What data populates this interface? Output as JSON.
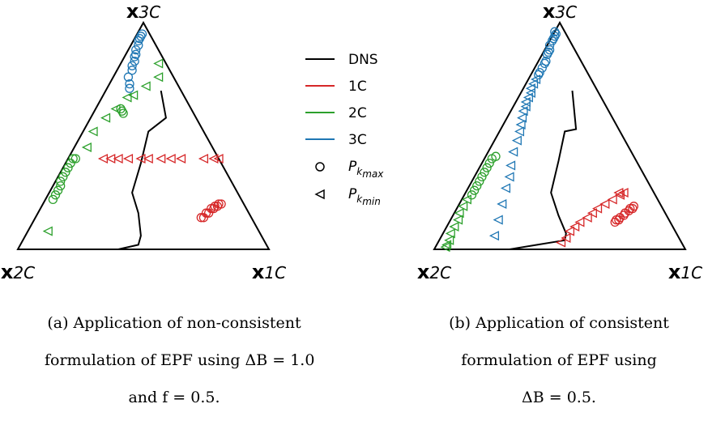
{
  "colors": {
    "dns": "#000000",
    "c1": "#d62728",
    "c2": "#2ca02c",
    "c3": "#1f77b4"
  },
  "vertices": {
    "top": {
      "main": "x",
      "sub": "3C"
    },
    "left": {
      "main": "x",
      "sub": "2C"
    },
    "right": {
      "main": "x",
      "sub": "1C"
    }
  },
  "legend": [
    {
      "key": "dns",
      "label": "DNS",
      "symbol": "line"
    },
    {
      "key": "c1",
      "label": "1C",
      "symbol": "line"
    },
    {
      "key": "c2",
      "label": "2C",
      "symbol": "line"
    },
    {
      "key": "c3",
      "label": "3C",
      "symbol": "line"
    },
    {
      "key": "pmax",
      "label": "P",
      "sub": "k",
      "subsub": "max",
      "symbol": "circle"
    },
    {
      "key": "pmin",
      "label": "P",
      "sub": "k",
      "subsub": "min",
      "symbol": "triangle-left"
    }
  ],
  "captions": {
    "a": [
      "(a) Application of non-consistent",
      "formulation of EPF using ΔB = 1.0",
      "and f = 0.5."
    ],
    "b": [
      "(b) Application of consistent",
      "formulation of EPF using",
      "ΔB = 0.5."
    ]
  },
  "chart_data": [
    {
      "type": "scatter",
      "panel": "a",
      "coordinates": "barycentric (x1C, x2C, x3C)",
      "dns_line": [
        [
          0.22,
          0.08,
          0.7
        ],
        [
          0.3,
          0.12,
          0.58
        ],
        [
          0.26,
          0.22,
          0.52
        ],
        [
          0.3,
          0.32,
          0.38
        ],
        [
          0.33,
          0.42,
          0.25
        ],
        [
          0.4,
          0.44,
          0.16
        ],
        [
          0.46,
          0.48,
          0.06
        ],
        [
          0.47,
          0.51,
          0.02
        ],
        [
          0.4,
          0.6,
          0.0
        ]
      ],
      "series": [
        {
          "name": "1C",
          "marker": "circle",
          "points": [
            [
              0.71,
              0.09,
              0.2
            ],
            [
              0.7,
              0.1,
              0.2
            ],
            [
              0.7,
              0.11,
              0.19
            ],
            [
              0.69,
              0.12,
              0.19
            ],
            [
              0.69,
              0.13,
              0.18
            ],
            [
              0.68,
              0.14,
              0.18
            ],
            [
              0.68,
              0.16,
              0.16
            ],
            [
              0.67,
              0.17,
              0.16
            ],
            [
              0.67,
              0.19,
              0.14
            ],
            [
              0.66,
              0.2,
              0.14
            ]
          ]
        },
        {
          "name": "1C",
          "marker": "triangle-left",
          "points": [
            [
              0.6,
              0.0,
              0.4
            ],
            [
              0.58,
              0.02,
              0.4
            ],
            [
              0.54,
              0.06,
              0.4
            ],
            [
              0.45,
              0.15,
              0.4
            ],
            [
              0.41,
              0.19,
              0.4
            ],
            [
              0.37,
              0.23,
              0.4
            ],
            [
              0.32,
              0.28,
              0.4
            ],
            [
              0.29,
              0.31,
              0.4
            ],
            [
              0.24,
              0.36,
              0.4
            ],
            [
              0.2,
              0.4,
              0.4
            ],
            [
              0.17,
              0.43,
              0.4
            ],
            [
              0.14,
              0.46,
              0.4
            ]
          ]
        },
        {
          "name": "2C",
          "marker": "circle",
          "points": [
            [
              0.03,
              0.57,
              0.4
            ],
            [
              0.02,
              0.58,
              0.4
            ],
            [
              0.02,
              0.6,
              0.38
            ],
            [
              0.02,
              0.62,
              0.36
            ],
            [
              0.02,
              0.64,
              0.34
            ],
            [
              0.02,
              0.66,
              0.32
            ],
            [
              0.02,
              0.68,
              0.3
            ],
            [
              0.03,
              0.69,
              0.28
            ],
            [
              0.03,
              0.71,
              0.26
            ],
            [
              0.03,
              0.73,
              0.24
            ],
            [
              0.03,
              0.75,
              0.22
            ],
            [
              0.12,
              0.28,
              0.6
            ],
            [
              0.11,
              0.28,
              0.61
            ],
            [
              0.1,
              0.28,
              0.62
            ]
          ]
        },
        {
          "name": "2C",
          "marker": "triangle-left",
          "points": [
            [
              0.08,
              0.84,
              0.08
            ],
            [
              0.05,
              0.5,
              0.45
            ],
            [
              0.04,
              0.44,
              0.52
            ],
            [
              0.06,
              0.36,
              0.58
            ],
            [
              0.08,
              0.3,
              0.62
            ],
            [
              0.1,
              0.23,
              0.67
            ],
            [
              0.12,
              0.2,
              0.68
            ],
            [
              0.15,
              0.13,
              0.72
            ],
            [
              0.18,
              0.06,
              0.76
            ],
            [
              0.15,
              0.03,
              0.82
            ]
          ]
        },
        {
          "name": "3C",
          "marker": "circle",
          "points": [
            [
              0.02,
              0.03,
              0.95
            ],
            [
              0.02,
              0.04,
              0.94
            ],
            [
              0.02,
              0.05,
              0.93
            ],
            [
              0.02,
              0.06,
              0.92
            ],
            [
              0.03,
              0.07,
              0.9
            ],
            [
              0.03,
              0.09,
              0.88
            ],
            [
              0.04,
              0.1,
              0.86
            ],
            [
              0.04,
              0.11,
              0.85
            ],
            [
              0.05,
              0.12,
              0.83
            ],
            [
              0.05,
              0.14,
              0.81
            ],
            [
              0.06,
              0.15,
              0.79
            ],
            [
              0.06,
              0.18,
              0.76
            ],
            [
              0.08,
              0.19,
              0.73
            ],
            [
              0.09,
              0.2,
              0.71
            ]
          ]
        }
      ]
    },
    {
      "type": "scatter",
      "panel": "b",
      "coordinates": "barycentric (x1C, x2C, x3C)",
      "dns_line": [
        [
          0.2,
          0.1,
          0.7
        ],
        [
          0.3,
          0.17,
          0.53
        ],
        [
          0.26,
          0.22,
          0.52
        ],
        [
          0.3,
          0.31,
          0.39
        ],
        [
          0.34,
          0.41,
          0.25
        ],
        [
          0.42,
          0.43,
          0.15
        ],
        [
          0.49,
          0.44,
          0.07
        ],
        [
          0.5,
          0.46,
          0.04
        ],
        [
          0.4,
          0.58,
          0.02
        ],
        [
          0.3,
          0.7,
          0.0
        ]
      ],
      "series": [
        {
          "name": "1C",
          "marker": "circle",
          "points": [
            [
              0.7,
              0.11,
              0.19
            ],
            [
              0.7,
              0.12,
              0.18
            ],
            [
              0.69,
              0.13,
              0.18
            ],
            [
              0.69,
              0.14,
              0.17
            ],
            [
              0.68,
              0.16,
              0.16
            ],
            [
              0.68,
              0.17,
              0.15
            ],
            [
              0.67,
              0.19,
              0.14
            ],
            [
              0.67,
              0.2,
              0.13
            ],
            [
              0.66,
              0.21,
              0.13
            ],
            [
              0.66,
              0.22,
              0.12
            ]
          ]
        },
        {
          "name": "1C",
          "marker": "triangle-left",
          "points": [
            [
              0.63,
              0.12,
              0.25
            ],
            [
              0.61,
              0.14,
              0.25
            ],
            [
              0.62,
              0.14,
              0.24
            ],
            [
              0.6,
              0.18,
              0.22
            ],
            [
              0.58,
              0.22,
              0.2
            ],
            [
              0.56,
              0.26,
              0.18
            ],
            [
              0.55,
              0.29,
              0.16
            ],
            [
              0.54,
              0.32,
              0.14
            ],
            [
              0.52,
              0.36,
              0.12
            ],
            [
              0.51,
              0.39,
              0.1
            ],
            [
              0.5,
              0.42,
              0.08
            ],
            [
              0.5,
              0.45,
              0.05
            ],
            [
              0.49,
              0.48,
              0.03
            ]
          ]
        },
        {
          "name": "2C",
          "marker": "circle",
          "points": [
            [
              0.04,
              0.55,
              0.41
            ],
            [
              0.03,
              0.57,
              0.4
            ],
            [
              0.03,
              0.59,
              0.38
            ],
            [
              0.03,
              0.61,
              0.36
            ],
            [
              0.03,
              0.63,
              0.34
            ],
            [
              0.03,
              0.65,
              0.32
            ],
            [
              0.03,
              0.67,
              0.3
            ],
            [
              0.03,
              0.69,
              0.28
            ],
            [
              0.03,
              0.71,
              0.26
            ],
            [
              0.03,
              0.73,
              0.24
            ]
          ]
        },
        {
          "name": "2C",
          "marker": "triangle-left",
          "points": [
            [
              0.02,
              0.76,
              0.22
            ],
            [
              0.02,
              0.79,
              0.19
            ],
            [
              0.02,
              0.82,
              0.16
            ],
            [
              0.03,
              0.84,
              0.13
            ],
            [
              0.03,
              0.87,
              0.1
            ],
            [
              0.03,
              0.9,
              0.07
            ],
            [
              0.04,
              0.92,
              0.04
            ],
            [
              0.04,
              0.94,
              0.02
            ],
            [
              0.04,
              0.95,
              0.01
            ]
          ]
        },
        {
          "name": "3C",
          "marker": "circle",
          "points": [
            [
              0.0,
              0.04,
              0.96
            ],
            [
              0.01,
              0.04,
              0.95
            ],
            [
              0.01,
              0.05,
              0.94
            ],
            [
              0.01,
              0.06,
              0.93
            ],
            [
              0.01,
              0.07,
              0.92
            ],
            [
              0.01,
              0.09,
              0.9
            ],
            [
              0.02,
              0.1,
              0.88
            ],
            [
              0.02,
              0.11,
              0.87
            ],
            [
              0.02,
              0.12,
              0.86
            ],
            [
              0.03,
              0.14,
              0.83
            ],
            [
              0.03,
              0.15,
              0.82
            ],
            [
              0.03,
              0.17,
              0.8
            ],
            [
              0.03,
              0.19,
              0.78
            ],
            [
              0.03,
              0.2,
              0.77
            ]
          ]
        },
        {
          "name": "3C",
          "marker": "triangle-left",
          "points": [
            [
              0.03,
              0.22,
              0.75
            ],
            [
              0.03,
              0.24,
              0.73
            ],
            [
              0.03,
              0.26,
              0.71
            ],
            [
              0.04,
              0.27,
              0.69
            ],
            [
              0.04,
              0.29,
              0.67
            ],
            [
              0.04,
              0.31,
              0.65
            ],
            [
              0.05,
              0.32,
              0.63
            ],
            [
              0.05,
              0.34,
              0.61
            ],
            [
              0.06,
              0.36,
              0.58
            ],
            [
              0.07,
              0.38,
              0.55
            ],
            [
              0.08,
              0.4,
              0.52
            ],
            [
              0.09,
              0.43,
              0.48
            ],
            [
              0.1,
              0.47,
              0.43
            ],
            [
              0.12,
              0.51,
              0.37
            ],
            [
              0.14,
              0.54,
              0.32
            ],
            [
              0.15,
              0.58,
              0.27
            ],
            [
              0.17,
              0.63,
              0.2
            ],
            [
              0.19,
              0.68,
              0.13
            ],
            [
              0.21,
              0.73,
              0.06
            ]
          ]
        }
      ]
    }
  ]
}
